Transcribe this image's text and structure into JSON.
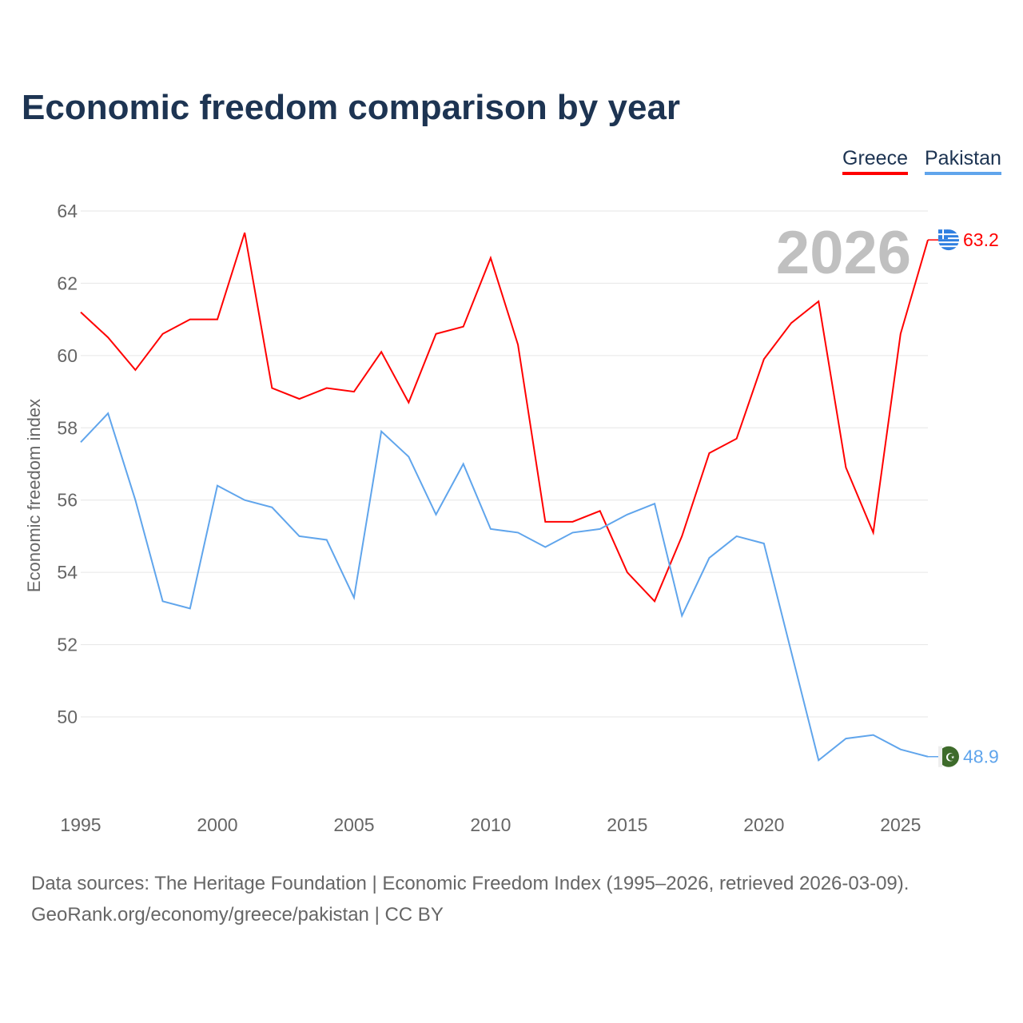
{
  "title": "Economic freedom comparison by year",
  "footer": {
    "line1": "Data sources: The Heritage Foundation | Economic Freedom Index (1995–2026, retrieved 2026-03-09).",
    "line2": "GeoRank.org/economy/greece/pakistan | CC BY"
  },
  "chart_data": {
    "type": "line",
    "title": "Economic freedom comparison by year",
    "xlabel": "",
    "ylabel": "Economic freedom index",
    "year_label": "2026",
    "xlim": [
      1995,
      2026
    ],
    "ylim": [
      48,
      64
    ],
    "x_ticks": [
      1995,
      2000,
      2005,
      2010,
      2015,
      2020,
      2025
    ],
    "y_ticks": [
      50,
      52,
      54,
      56,
      58,
      60,
      62,
      64
    ],
    "legend_position": "top-right",
    "x": [
      1995,
      1996,
      1997,
      1998,
      1999,
      2000,
      2001,
      2002,
      2003,
      2004,
      2005,
      2006,
      2007,
      2008,
      2009,
      2010,
      2011,
      2012,
      2013,
      2014,
      2015,
      2016,
      2017,
      2018,
      2019,
      2020,
      2021,
      2022,
      2023,
      2024,
      2025,
      2026
    ],
    "series": [
      {
        "name": "Greece",
        "color": "#ff0000",
        "end_label": "63.2",
        "values": [
          61.2,
          60.5,
          59.6,
          60.6,
          61.0,
          61.0,
          63.4,
          59.1,
          58.8,
          59.1,
          59.0,
          60.1,
          58.7,
          60.6,
          60.8,
          62.7,
          60.3,
          55.4,
          55.4,
          55.7,
          54.0,
          53.2,
          55.0,
          57.3,
          57.7,
          59.9,
          60.9,
          61.5,
          56.9,
          55.1,
          60.6,
          63.2
        ]
      },
      {
        "name": "Pakistan",
        "color": "#60a5ec",
        "end_label": "48.9",
        "values": [
          57.6,
          58.4,
          56.0,
          53.2,
          53.0,
          56.4,
          56.0,
          55.8,
          55.0,
          54.9,
          53.3,
          57.9,
          57.2,
          55.6,
          57.0,
          55.2,
          55.1,
          54.7,
          55.1,
          55.2,
          55.6,
          55.9,
          52.8,
          54.4,
          55.0,
          54.8,
          51.8,
          48.8,
          49.4,
          49.5,
          49.1,
          48.9
        ]
      }
    ]
  }
}
